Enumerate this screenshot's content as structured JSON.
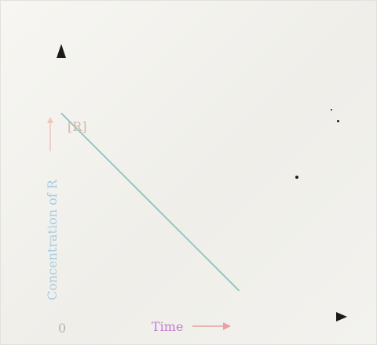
{
  "chart_data": {
    "type": "line",
    "title": "",
    "xlabel": "Time",
    "ylabel": "Concentration of R",
    "initial_concentration_label": "[R]",
    "x_axis_zero_label": "0",
    "xlim": [
      0,
      10
    ],
    "ylim": [
      0,
      10
    ],
    "series": [
      {
        "x": [
          0,
          6.47
        ],
        "y": [
          7.88,
          1.06
        ]
      }
    ],
    "grid": false,
    "colors": {
      "x_axis": "#8a7fd6",
      "y_axis_upper": "#e9a29a",
      "y_axis_lower": "#b9d6e8",
      "line": "#8fc0c0",
      "ylabel": "#a8cbe2",
      "xlabel": "#c27bd0",
      "r_label": "#d3b7a6",
      "zero_label": "#b8b2ad",
      "arrow_head": "#1b1b1b"
    }
  }
}
